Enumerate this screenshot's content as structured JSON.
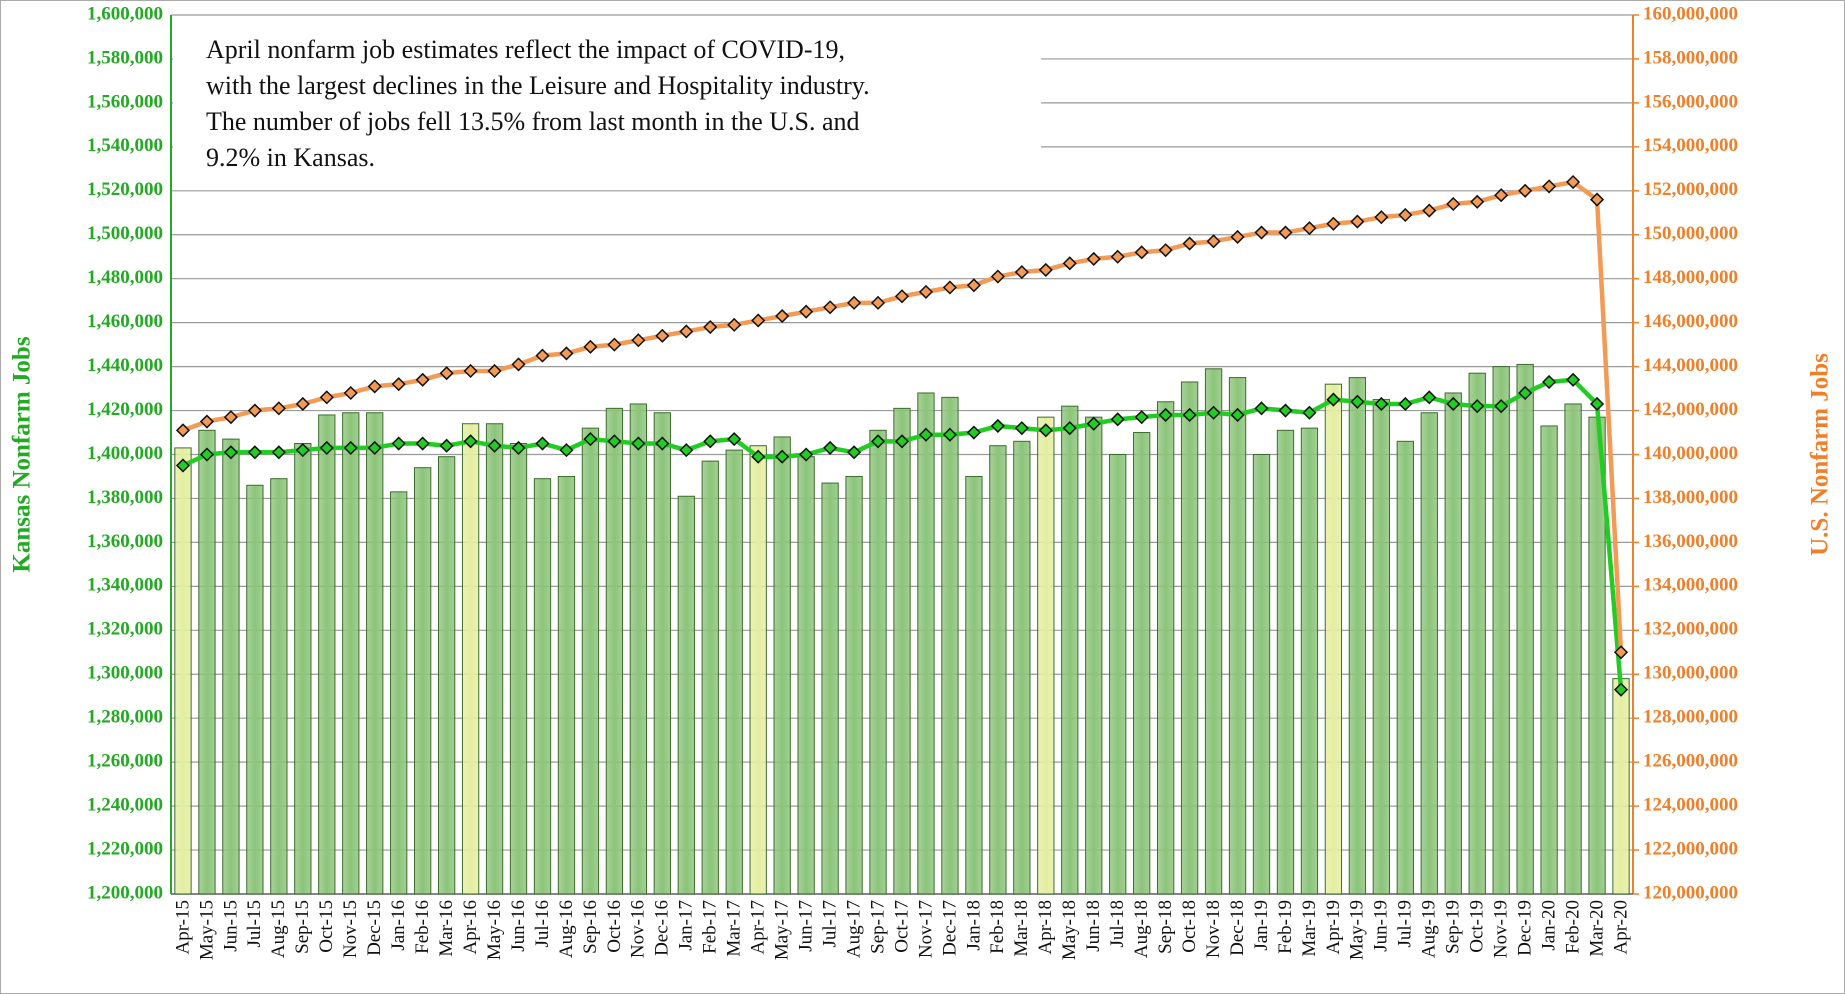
{
  "chart_data": {
    "type": "bar_line",
    "annotation": [
      "April nonfarm job estimates reflect the impact of COVID-19,",
      "with the largest declines in the Leisure and Hospitality industry.",
      "The number of jobs fell 13.5% from last month in the U.S. and",
      "9.2% in Kansas."
    ],
    "ylabel": "Kansas Nonfarm Jobs",
    "y2label": "U.S. Nonfarm Jobs",
    "categories": [
      "Apr-15",
      "May-15",
      "Jun-15",
      "Jul-15",
      "Aug-15",
      "Sep-15",
      "Oct-15",
      "Nov-15",
      "Dec-15",
      "Jan-16",
      "Feb-16",
      "Mar-16",
      "Apr-16",
      "May-16",
      "Jun-16",
      "Jul-16",
      "Aug-16",
      "Sep-16",
      "Oct-16",
      "Nov-16",
      "Dec-16",
      "Jan-17",
      "Feb-17",
      "Mar-17",
      "Apr-17",
      "May-17",
      "Jun-17",
      "Jul-17",
      "Aug-17",
      "Sep-17",
      "Oct-17",
      "Nov-17",
      "Dec-17",
      "Jan-18",
      "Feb-18",
      "Mar-18",
      "Apr-18",
      "May-18",
      "Jun-18",
      "Jul-18",
      "Aug-18",
      "Sep-18",
      "Oct-18",
      "Nov-18",
      "Dec-18",
      "Jan-19",
      "Feb-19",
      "Mar-19",
      "Apr-19",
      "May-19",
      "Jun-19",
      "Jul-19",
      "Aug-19",
      "Sep-19",
      "Oct-19",
      "Nov-19",
      "Dec-19",
      "Jan-20",
      "Feb-20",
      "Mar-20",
      "Apr-20"
    ],
    "series": [
      {
        "type": "bar",
        "color": "#8cc47a",
        "colors": [
          "#e4eea0",
          "#8cc47a",
          "#8cc47a",
          "#8cc47a",
          "#8cc47a",
          "#8cc47a",
          "#8cc47a",
          "#8cc47a",
          "#8cc47a",
          "#8cc47a",
          "#8cc47a",
          "#8cc47a",
          "#e4eea0",
          "#8cc47a",
          "#8cc47a",
          "#8cc47a",
          "#8cc47a",
          "#8cc47a",
          "#8cc47a",
          "#8cc47a",
          "#8cc47a",
          "#8cc47a",
          "#8cc47a",
          "#8cc47a",
          "#e4eea0",
          "#8cc47a",
          "#8cc47a",
          "#8cc47a",
          "#8cc47a",
          "#8cc47a",
          "#8cc47a",
          "#8cc47a",
          "#8cc47a",
          "#8cc47a",
          "#8cc47a",
          "#8cc47a",
          "#e4eea0",
          "#8cc47a",
          "#8cc47a",
          "#8cc47a",
          "#8cc47a",
          "#8cc47a",
          "#8cc47a",
          "#8cc47a",
          "#8cc47a",
          "#8cc47a",
          "#8cc47a",
          "#8cc47a",
          "#e4eea0",
          "#8cc47a",
          "#8cc47a",
          "#8cc47a",
          "#8cc47a",
          "#8cc47a",
          "#8cc47a",
          "#8cc47a",
          "#8cc47a",
          "#8cc47a",
          "#8cc47a",
          "#8cc47a",
          "#e4eea0"
        ],
        "values": [
          1403000,
          1411000,
          1407000,
          1386000,
          1389000,
          1405000,
          1418000,
          1419000,
          1419000,
          1383000,
          1394000,
          1399000,
          1414000,
          1414000,
          1405000,
          1389000,
          1390000,
          1412000,
          1421000,
          1423000,
          1419000,
          1381000,
          1397000,
          1402000,
          1404000,
          1408000,
          1399000,
          1387000,
          1390000,
          1411000,
          1421000,
          1428000,
          1426000,
          1390000,
          1404000,
          1406000,
          1417000,
          1422000,
          1417000,
          1400000,
          1410000,
          1424000,
          1433000,
          1439000,
          1435000,
          1400000,
          1411000,
          1412000,
          1432000,
          1435000,
          1425000,
          1406000,
          1419000,
          1428000,
          1437000,
          1440000,
          1441000,
          1413000,
          1423000,
          1417000,
          1298000
        ]
      },
      {
        "type": "line",
        "color": "#22cc22",
        "values": [
          1395000,
          1400000,
          1401000,
          1401000,
          1401000,
          1402000,
          1403000,
          1403000,
          1403000,
          1405000,
          1405000,
          1404000,
          1406000,
          1404000,
          1403000,
          1405000,
          1402000,
          1407000,
          1406000,
          1405000,
          1405000,
          1402000,
          1406000,
          1407000,
          1399000,
          1399000,
          1400000,
          1403000,
          1401000,
          1406000,
          1406000,
          1409000,
          1409000,
          1410000,
          1413000,
          1412000,
          1411000,
          1412000,
          1414000,
          1416000,
          1417000,
          1418000,
          1418000,
          1419000,
          1418000,
          1421000,
          1420000,
          1419000,
          1425000,
          1424000,
          1423000,
          1423000,
          1426000,
          1423000,
          1422000,
          1422000,
          1428000,
          1433000,
          1434000,
          1423000,
          1293000
        ]
      },
      {
        "type": "line",
        "color": "#f39a55",
        "axis": "y2",
        "values": [
          141100000,
          141500000,
          141700000,
          142000000,
          142100000,
          142300000,
          142600000,
          142800000,
          143100000,
          143200000,
          143400000,
          143700000,
          143800000,
          143800000,
          144100000,
          144500000,
          144600000,
          144900000,
          145000000,
          145200000,
          145400000,
          145600000,
          145800000,
          145900000,
          146100000,
          146300000,
          146500000,
          146700000,
          146900000,
          146900000,
          147200000,
          147400000,
          147600000,
          147700000,
          148100000,
          148300000,
          148400000,
          148700000,
          148900000,
          149000000,
          149200000,
          149300000,
          149600000,
          149700000,
          149900000,
          150100000,
          150100000,
          150300000,
          150500000,
          150600000,
          150800000,
          150900000,
          151100000,
          151400000,
          151500000,
          151800000,
          152000000,
          152200000,
          152400000,
          151600000,
          131000000
        ]
      }
    ],
    "ylim": [
      1200000,
      1600000
    ],
    "yticks": [
      {
        "value": 1200000,
        "label": "1,200,000"
      },
      {
        "value": 1220000,
        "label": "1,220,000"
      },
      {
        "value": 1240000,
        "label": "1,240,000"
      },
      {
        "value": 1260000,
        "label": "1,260,000"
      },
      {
        "value": 1280000,
        "label": "1,280,000"
      },
      {
        "value": 1300000,
        "label": "1,300,000"
      },
      {
        "value": 1320000,
        "label": "1,320,000"
      },
      {
        "value": 1340000,
        "label": "1,340,000"
      },
      {
        "value": 1360000,
        "label": "1,360,000"
      },
      {
        "value": 1380000,
        "label": "1,380,000"
      },
      {
        "value": 1400000,
        "label": "1,400,000"
      },
      {
        "value": 1420000,
        "label": "1,420,000"
      },
      {
        "value": 1440000,
        "label": "1,440,000"
      },
      {
        "value": 1460000,
        "label": "1,460,000"
      },
      {
        "value": 1480000,
        "label": "1,480,000"
      },
      {
        "value": 1500000,
        "label": "1,500,000"
      },
      {
        "value": 1520000,
        "label": "1,520,000"
      },
      {
        "value": 1540000,
        "label": "1,540,000"
      },
      {
        "value": 1560000,
        "label": "1,560,000"
      },
      {
        "value": 1580000,
        "label": "1,580,000"
      },
      {
        "value": 1600000,
        "label": "1,600,000"
      }
    ],
    "y2lim": [
      120000000,
      160000000
    ],
    "y2ticks": [
      {
        "value": 120000000,
        "label": "120,000,000"
      },
      {
        "value": 122000000,
        "label": "122,000,000"
      },
      {
        "value": 124000000,
        "label": "124,000,000"
      },
      {
        "value": 126000000,
        "label": "126,000,000"
      },
      {
        "value": 128000000,
        "label": "128,000,000"
      },
      {
        "value": 130000000,
        "label": "130,000,000"
      },
      {
        "value": 132000000,
        "label": "132,000,000"
      },
      {
        "value": 134000000,
        "label": "134,000,000"
      },
      {
        "value": 136000000,
        "label": "136,000,000"
      },
      {
        "value": 138000000,
        "label": "138,000,000"
      },
      {
        "value": 140000000,
        "label": "140,000,000"
      },
      {
        "value": 142000000,
        "label": "142,000,000"
      },
      {
        "value": 144000000,
        "label": "144,000,000"
      },
      {
        "value": 146000000,
        "label": "146,000,000"
      },
      {
        "value": 148000000,
        "label": "148,000,000"
      },
      {
        "value": 150000000,
        "label": "150,000,000"
      },
      {
        "value": 152000000,
        "label": "152,000,000"
      },
      {
        "value": 154000000,
        "label": "154,000,000"
      },
      {
        "value": 156000000,
        "label": "156,000,000"
      },
      {
        "value": 158000000,
        "label": "158,000,000"
      },
      {
        "value": 160000000,
        "label": "160,000,000"
      }
    ],
    "grid": true,
    "ycolor": "#22aa22",
    "y2color": "#f07f2a"
  }
}
